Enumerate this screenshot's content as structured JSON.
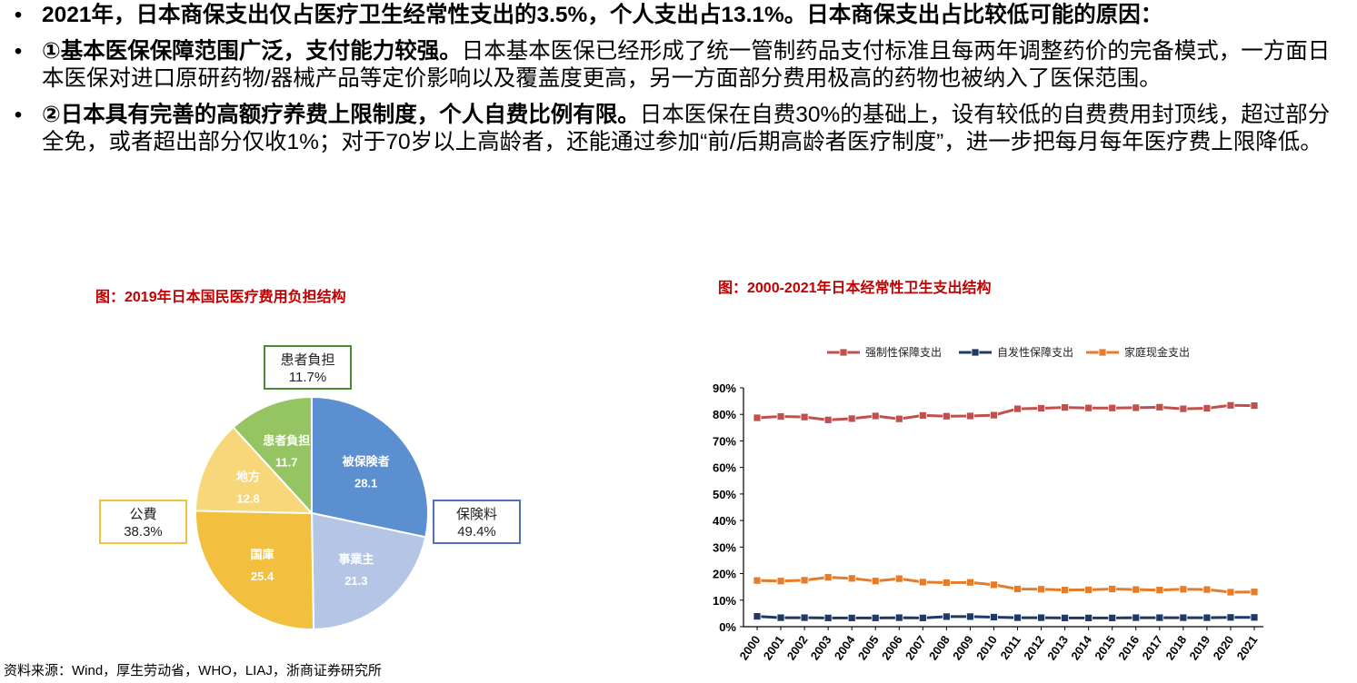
{
  "bullets": [
    {
      "bold": "2021年，日本商保支出仅占医疗卫生经常性支出的3.5%，个人支出占13.1%。日本商保支出占比较低可能的原因：",
      "text": ""
    },
    {
      "bold": "①基本医保保障范围广泛，支付能力较强。",
      "text": "日本基本医保已经形成了统一管制药品支付标准且每两年调整药价的完备模式，一方面日本医保对进口原研药物/器械产品等定价影响以及覆盖度更高，另一方面部分费用极高的药物也被纳入了医保范围。"
    },
    {
      "bold": "②日本具有完善的高额疗养费上限制度，个人自费比例有限。",
      "text": "日本医保在自费30%的基础上，设有较低的自费费用封顶线，超过部分全免，或者超出部分仅收1%；对于70岁以上高龄者，还能通过参加“前/后期高龄者医疗制度”，进一步把每月每年医疗费上限降低。"
    }
  ],
  "bullet_symbol": "•",
  "source": "资料来源：Wind，厚生劳动省，WHO，LIAJ，浙商证券研究所",
  "chart_data": [
    {
      "type": "pie",
      "title": "图：2019年日本国民医疗费用负担结构",
      "slices": [
        {
          "label": "被保険者",
          "value": 28.1,
          "color": "#5b8fd0"
        },
        {
          "label": "事業主",
          "value": 21.3,
          "color": "#b4c5e6"
        },
        {
          "label": "国庫",
          "value": 25.4,
          "color": "#f2c03e"
        },
        {
          "label": "地方",
          "value": 12.8,
          "color": "#f8d67a"
        },
        {
          "label": "患者負担",
          "value": 11.7,
          "color": "#94c562"
        }
      ],
      "callouts": [
        {
          "label": "患者負担",
          "value": "11.7%",
          "color": "#4b8a35"
        },
        {
          "label": "保険料",
          "value": "49.4%",
          "color": "#4f73b8"
        },
        {
          "label": "公費",
          "value": "38.3%",
          "color": "#f2c03e"
        }
      ]
    },
    {
      "type": "line",
      "title": "图：2000-2021年日本经常性卫生支出结构",
      "categories": [
        "2000",
        "2001",
        "2002",
        "2003",
        "2004",
        "2005",
        "2006",
        "2007",
        "2008",
        "2009",
        "2010",
        "2011",
        "2012",
        "2013",
        "2014",
        "2015",
        "2016",
        "2017",
        "2018",
        "2019",
        "2020",
        "2021"
      ],
      "series": [
        {
          "name": "强制性保障支出",
          "color": "#c0504d",
          "values": [
            78.7,
            79.2,
            79.0,
            77.9,
            78.4,
            79.4,
            78.3,
            79.6,
            79.3,
            79.4,
            79.7,
            82.1,
            82.3,
            82.6,
            82.4,
            82.4,
            82.5,
            82.7,
            82.1,
            82.3,
            83.4,
            83.3
          ]
        },
        {
          "name": "自发性保障支出",
          "color": "#1f3864",
          "values": [
            3.9,
            3.4,
            3.4,
            3.3,
            3.3,
            3.3,
            3.4,
            3.3,
            3.8,
            3.8,
            3.6,
            3.4,
            3.4,
            3.3,
            3.3,
            3.3,
            3.4,
            3.4,
            3.4,
            3.4,
            3.5,
            3.5
          ]
        },
        {
          "name": "家庭现金支出",
          "color": "#e37c2b",
          "values": [
            17.4,
            17.2,
            17.5,
            18.6,
            18.2,
            17.2,
            18.1,
            16.8,
            16.6,
            16.7,
            15.8,
            14.2,
            14.1,
            13.8,
            13.9,
            14.2,
            14.0,
            13.8,
            14.1,
            14.0,
            13.0,
            13.1
          ]
        }
      ],
      "y_ticks": [
        "0%",
        "10%",
        "20%",
        "30%",
        "40%",
        "50%",
        "60%",
        "70%",
        "80%",
        "90%"
      ],
      "ylim": [
        0,
        90
      ]
    }
  ]
}
